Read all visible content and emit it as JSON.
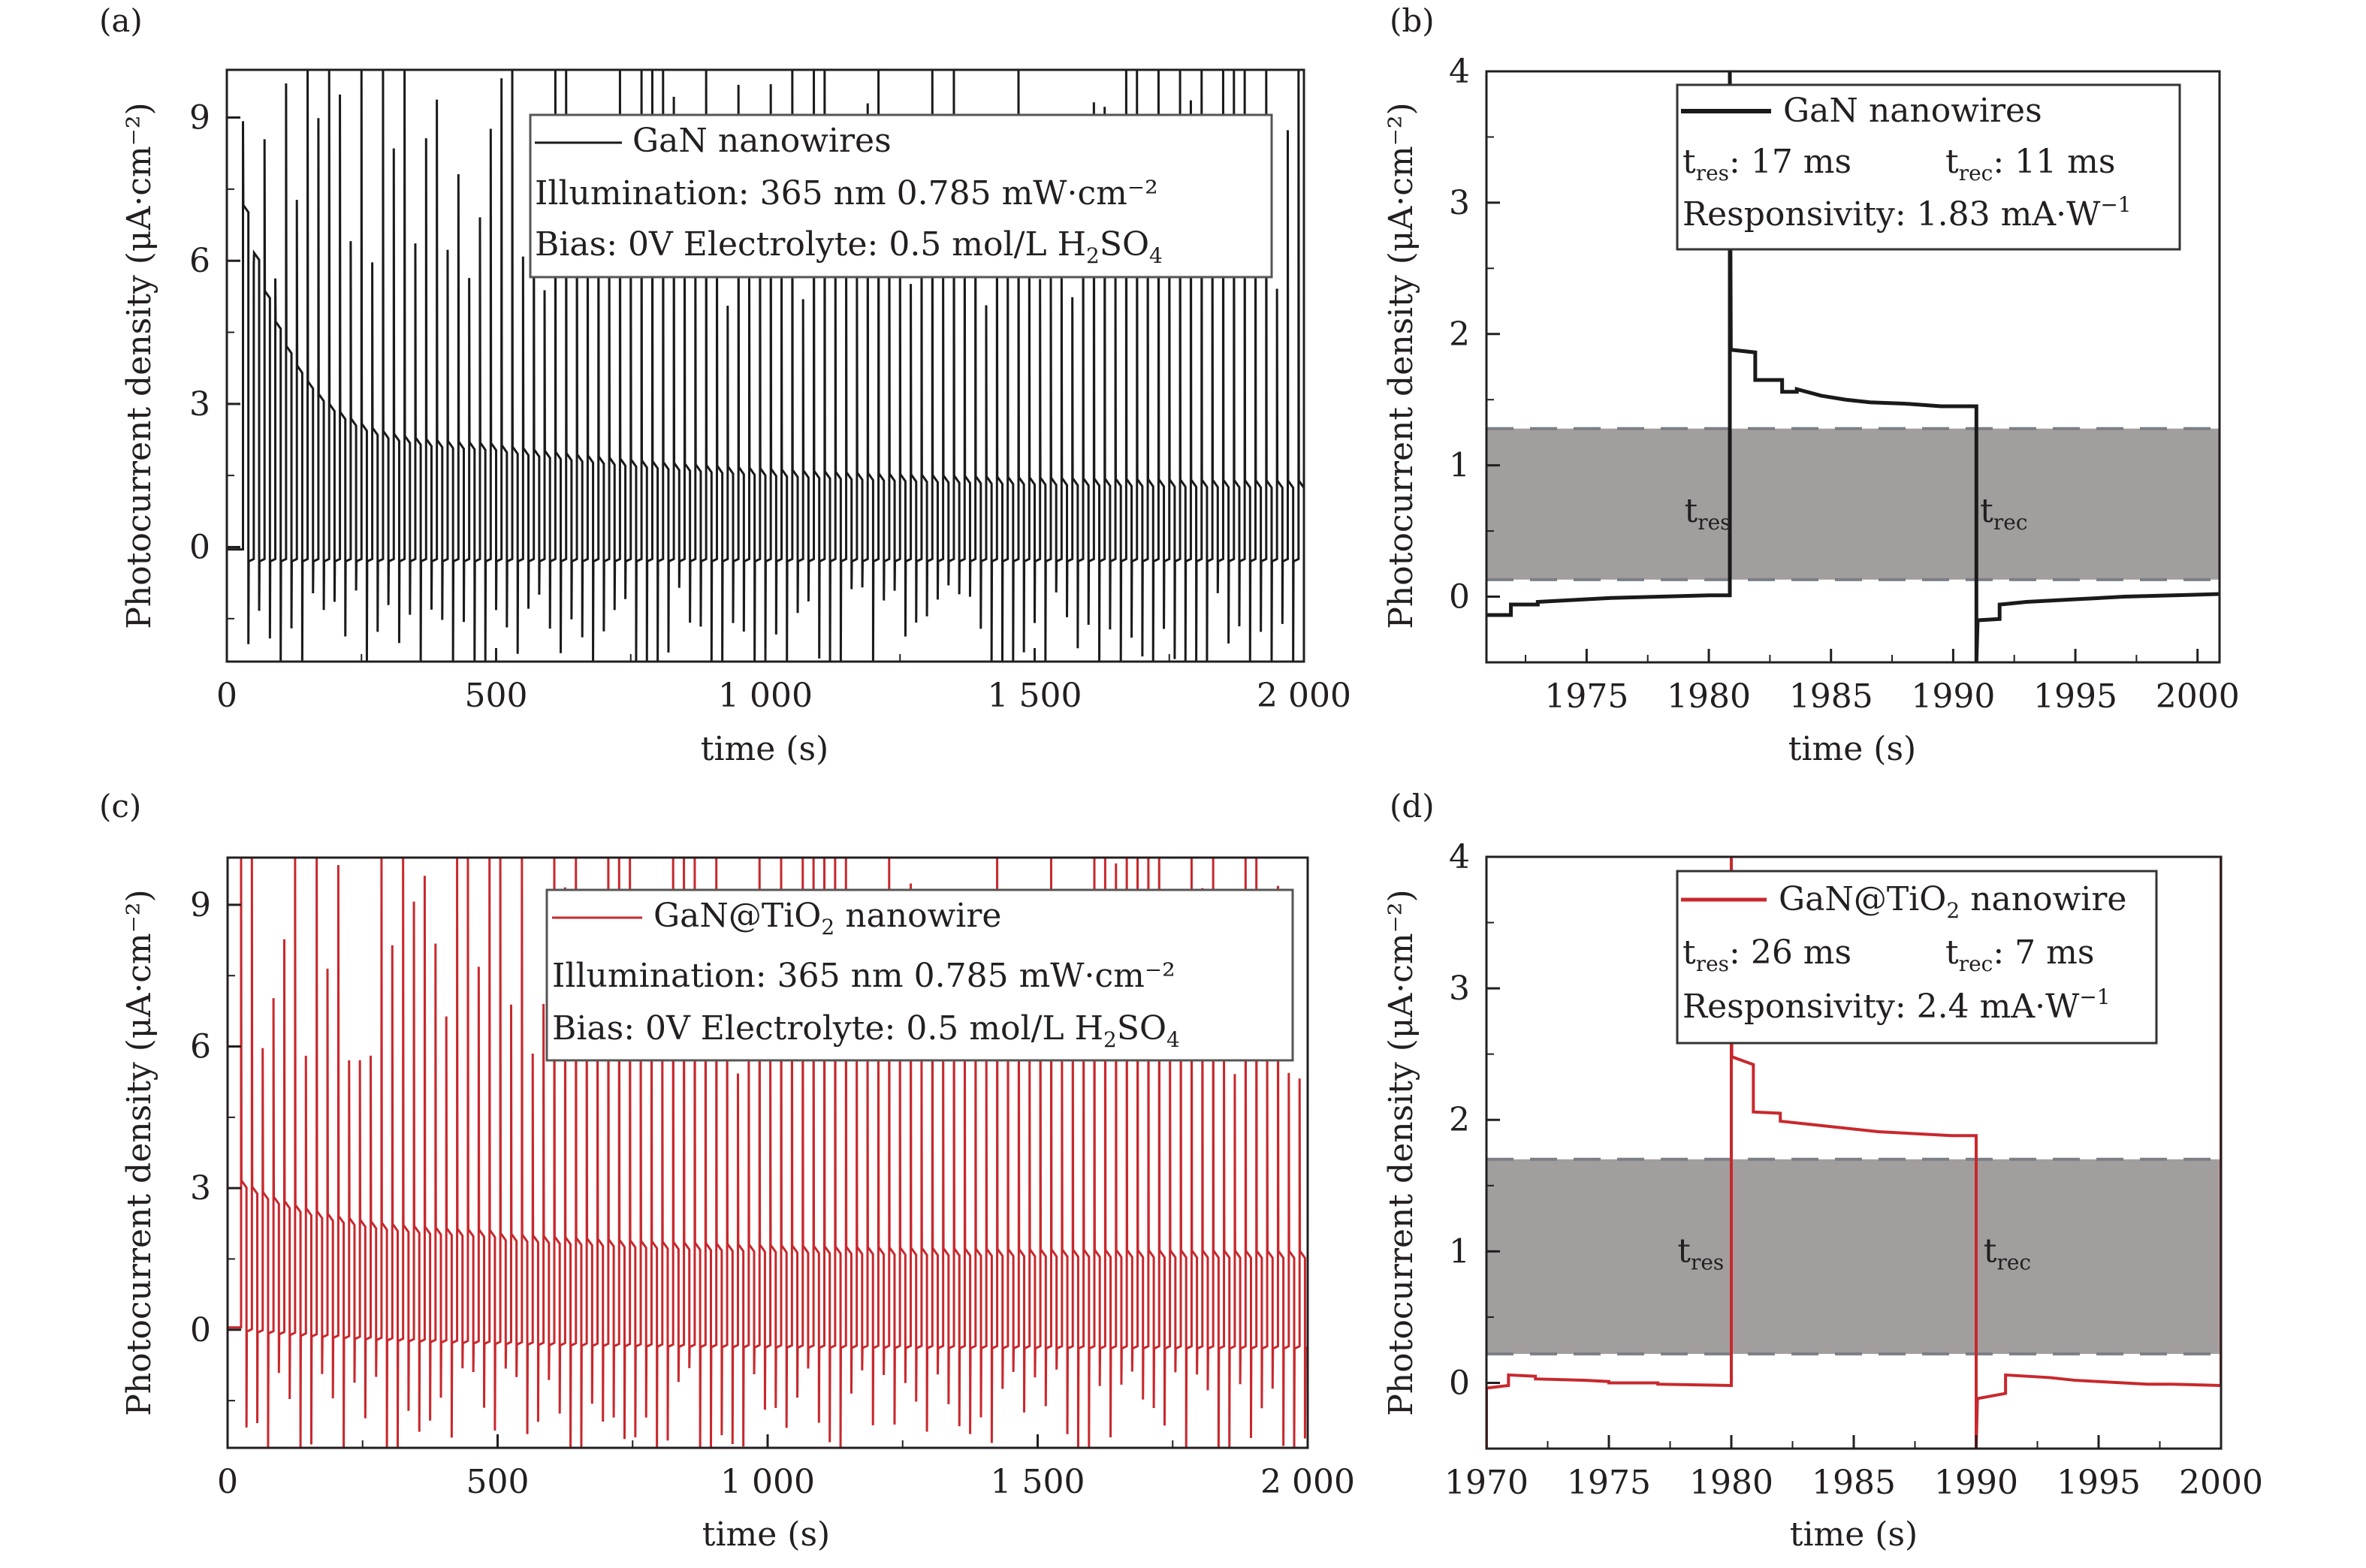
{
  "figure": {
    "colors": {
      "black_trace": "#1a1a1a",
      "red_trace": "#c8282d",
      "band_fill": "#a39e9e",
      "band_dash": "#7a7f86",
      "axis": "#231f20"
    }
  },
  "chart_data": [
    {
      "id": "a",
      "panel_label": "(a)",
      "type": "line",
      "series": [
        {
          "name": "GaN nanowires",
          "color": "#1a1a1a"
        }
      ],
      "xlabel": "time (s)",
      "ylabel": "Photocurrent density (μA·cm⁻²)",
      "xlim": [
        0,
        2000
      ],
      "ylim": [
        -2.4,
        10
      ],
      "xticks": [
        0,
        500,
        1000,
        1500,
        2000
      ],
      "xtick_labels": [
        "0",
        "500",
        "1 000",
        "1 500",
        "2 000"
      ],
      "yticks": [
        0,
        3,
        6,
        9
      ],
      "ytick_labels": [
        "0",
        "3",
        "6",
        "9"
      ],
      "signal": {
        "description": "On/off photocurrent switching, period 20 s (10 s on / 10 s off)",
        "period_s": 20,
        "dark_level": -0.25,
        "on_level_start": 9.0,
        "on_level_mid": 2.0,
        "on_level_end": 1.2,
        "spike_max": 10,
        "spike_min": -2.4
      },
      "legend": {
        "placement": "top-right",
        "entry": "GaN nanowires",
        "line2": "Illumination: 365 nm 0.785 mW·cm⁻²",
        "line3_prefix": "Bias: 0V  Electrolyte: 0.5 mol/L H",
        "line3_sub1": "2",
        "line3_mid": "SO",
        "line3_sub2": "4"
      },
      "grid": false
    },
    {
      "id": "b",
      "panel_label": "(b)",
      "type": "line",
      "series": [
        {
          "name": "GaN nanowires",
          "color": "#1a1a1a",
          "x": [
            1970.9,
            1971.9,
            1971.9,
            1973.0,
            1973.0,
            1974.0,
            1976.0,
            1978.0,
            1980.0,
            1980.86,
            1980.86,
            1980.9,
            1981.9,
            1981.9,
            1983.0,
            1983.0,
            1983.6,
            1983.6,
            1984.6,
            1985.6,
            1986.6,
            1988.0,
            1989.5,
            1990.95,
            1990.95,
            1991.0,
            1991.9,
            1991.9,
            1993.0,
            1995.0,
            1997.0,
            2000.9
          ],
          "y": [
            -0.14,
            -0.14,
            -0.06,
            -0.06,
            -0.04,
            -0.03,
            -0.01,
            0.0,
            0.01,
            0.01,
            4.0,
            1.88,
            1.86,
            1.65,
            1.65,
            1.56,
            1.56,
            1.58,
            1.53,
            1.5,
            1.48,
            1.47,
            1.45,
            1.45,
            -0.5,
            -0.18,
            -0.17,
            -0.06,
            -0.04,
            -0.02,
            0.0,
            0.02
          ]
        }
      ],
      "band": {
        "y_low": 0.13,
        "y_high": 1.28
      },
      "xlabel": "time (s)",
      "ylabel": "Photocurrent density (μA·cm⁻²)",
      "xlim": [
        1970.9,
        2000.9
      ],
      "ylim": [
        -0.5,
        4
      ],
      "xticks": [
        1975,
        1980,
        1985,
        1990,
        1995,
        2000
      ],
      "xtick_labels": [
        "1975",
        "1980",
        "1985",
        "1990",
        "1995",
        "2000"
      ],
      "yticks": [
        0,
        1,
        2,
        3,
        4
      ],
      "ytick_labels": [
        "0",
        "1",
        "2",
        "3",
        "4"
      ],
      "annotations": [
        {
          "main": "t",
          "sub": "res",
          "x": 1979.0,
          "y": 0.65
        },
        {
          "main": "t",
          "sub": "rec",
          "x": 1991.1,
          "y": 0.65
        }
      ],
      "legend": {
        "placement": "top-right",
        "entry": "GaN nanowires",
        "tres_label": "t",
        "tres_sub": "res",
        "tres_value": ": 17 ms",
        "trec_label": "t",
        "trec_sub": "rec",
        "trec_value": ": 11 ms",
        "responsivity_prefix": "Responsivity: 1.83 mA·W",
        "responsivity_sup": "−1"
      },
      "grid": false
    },
    {
      "id": "c",
      "panel_label": "(c)",
      "type": "line",
      "series": [
        {
          "name": "GaN@TiO2 nanowire",
          "color": "#c8282d"
        }
      ],
      "xlabel": "time (s)",
      "ylabel": "Photocurrent density (μA·cm⁻²)",
      "xlim": [
        0,
        2000
      ],
      "ylim": [
        -2.5,
        10
      ],
      "xticks": [
        0,
        500,
        1000,
        1500,
        2000
      ],
      "xtick_labels": [
        "0",
        "500",
        "1 000",
        "1 500",
        "2 000"
      ],
      "yticks": [
        0,
        3,
        6,
        9
      ],
      "ytick_labels": [
        "0",
        "3",
        "6",
        "9"
      ],
      "signal": {
        "description": "On/off photocurrent switching, period 20 s (10 s on / 10 s off)",
        "period_s": 20,
        "dark_level_start": 0.05,
        "dark_level_end": -0.35,
        "on_level_start": 3.2,
        "on_level_mid": 1.9,
        "on_level_end": 1.5,
        "spike_max": 10,
        "spike_min": -2.5
      },
      "legend": {
        "placement": "top-right",
        "entry_prefix": "GaN@TiO",
        "entry_sub": "2",
        "entry_suffix": " nanowire",
        "line2": "Illumination: 365 nm 0.785 mW·cm⁻²",
        "line3_prefix": "Bias: 0V  Electrolyte: 0.5 mol/L H",
        "line3_sub1": "2",
        "line3_mid": "SO",
        "line3_sub2": "4"
      },
      "grid": false
    },
    {
      "id": "d",
      "panel_label": "(d)",
      "type": "line",
      "series": [
        {
          "name": "GaN@TiO2 nanowire",
          "color": "#c8282d",
          "x": [
            1970.0,
            1970.0,
            1970.9,
            1970.9,
            1972.0,
            1972.0,
            1974.0,
            1975.0,
            1975.0,
            1977.0,
            1977.0,
            1980.0,
            1980.0,
            1980.02,
            1980.9,
            1980.9,
            1982.0,
            1982.0,
            1983.0,
            1984.0,
            1985.0,
            1986.0,
            1987.0,
            1988.0,
            1989.0,
            1990.0,
            1990.0,
            1990.05,
            1991.2,
            1991.2,
            1993.0,
            1994.0,
            1995.0,
            1996.0,
            1997.0,
            1998.0,
            2000.0,
            2000.0
          ],
          "y": [
            -0.5,
            -0.04,
            -0.02,
            0.06,
            0.05,
            0.03,
            0.02,
            0.01,
            0.0,
            0.0,
            -0.01,
            -0.02,
            4.0,
            2.48,
            2.42,
            2.06,
            2.05,
            1.99,
            1.97,
            1.95,
            1.93,
            1.91,
            1.9,
            1.89,
            1.88,
            1.88,
            -0.5,
            -0.12,
            -0.08,
            0.06,
            0.04,
            0.02,
            0.01,
            0.0,
            -0.01,
            -0.01,
            -0.02,
            4.0
          ]
        }
      ],
      "band": {
        "y_low": 0.22,
        "y_high": 1.7
      },
      "xlabel": "time (s)",
      "ylabel": "Photocurrent density (μA·cm⁻²)",
      "xlim": [
        1970,
        2000
      ],
      "ylim": [
        -0.5,
        4
      ],
      "xticks": [
        1970,
        1975,
        1980,
        1985,
        1990,
        1995,
        2000
      ],
      "xtick_labels": [
        "1970",
        "1975",
        "1980",
        "1985",
        "1990",
        "1995",
        "2000"
      ],
      "yticks": [
        0,
        1,
        2,
        3,
        4
      ],
      "ytick_labels": [
        "0",
        "1",
        "2",
        "3",
        "4"
      ],
      "annotations": [
        {
          "main": "t",
          "sub": "res",
          "x": 1977.8,
          "y": 1.0
        },
        {
          "main": "t",
          "sub": "rec",
          "x": 1990.3,
          "y": 1.0
        }
      ],
      "legend": {
        "placement": "top-right",
        "entry_prefix": "GaN@TiO",
        "entry_sub": "2",
        "entry_suffix": " nanowire",
        "tres_label": "t",
        "tres_sub": "res",
        "tres_value": ": 26 ms",
        "trec_label": "t",
        "trec_sub": "rec",
        "trec_value": ": 7 ms",
        "responsivity_prefix": "Responsivity: 2.4 mA·W",
        "responsivity_sup": "−1"
      },
      "grid": false
    }
  ]
}
